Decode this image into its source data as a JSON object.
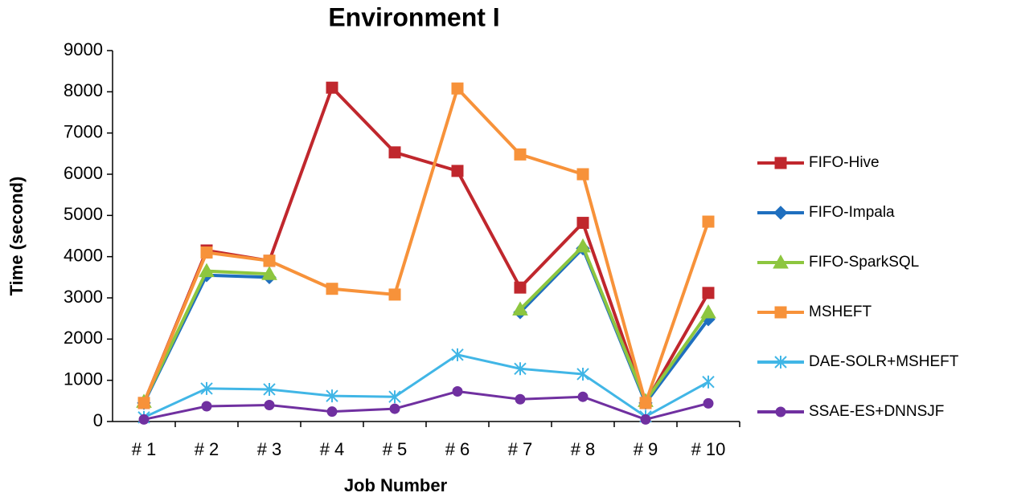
{
  "chart_data": {
    "type": "line",
    "title": "Environment I",
    "x_label": "Job Number",
    "y_label": "Time (second)",
    "categories": [
      "# 1",
      "# 2",
      "# 3",
      "# 4",
      "# 5",
      "# 6",
      "# 7",
      "# 8",
      "# 9",
      "# 10"
    ],
    "ylim": [
      0,
      9000
    ],
    "yticks": [
      0,
      1000,
      2000,
      3000,
      4000,
      5000,
      6000,
      7000,
      8000,
      9000
    ],
    "grid": false,
    "legend": "right",
    "series": [
      {
        "name": "FIFO-Hive",
        "color": "#c0272d",
        "marker": "square",
        "values": [
          450,
          4150,
          3900,
          8100,
          6530,
          6080,
          3250,
          4820,
          450,
          3120
        ]
      },
      {
        "name": "FIFO-Impala",
        "color": "#1f6fbf",
        "marker": "diamond",
        "values": [
          450,
          3550,
          3500,
          null,
          null,
          null,
          2650,
          4200,
          450,
          2480
        ]
      },
      {
        "name": "FIFO-SparkSQL",
        "color": "#8dc63f",
        "marker": "triangle",
        "values": [
          480,
          3650,
          3580,
          null,
          null,
          null,
          2720,
          4250,
          500,
          2650
        ]
      },
      {
        "name": "MSHEFT",
        "color": "#f7923a",
        "marker": "square",
        "values": [
          450,
          4100,
          3900,
          3220,
          3080,
          8080,
          6480,
          6000,
          450,
          4850
        ]
      },
      {
        "name": "DAE-SOLR+MSHEFT",
        "color": "#41b6e6",
        "marker": "asterisk",
        "values": [
          100,
          800,
          780,
          620,
          600,
          1620,
          1280,
          1150,
          120,
          960
        ]
      },
      {
        "name": "SSAE-ES+DNNSJF",
        "color": "#7030a0",
        "marker": "circle",
        "values": [
          50,
          370,
          400,
          240,
          310,
          730,
          540,
          600,
          50,
          440
        ]
      }
    ]
  }
}
